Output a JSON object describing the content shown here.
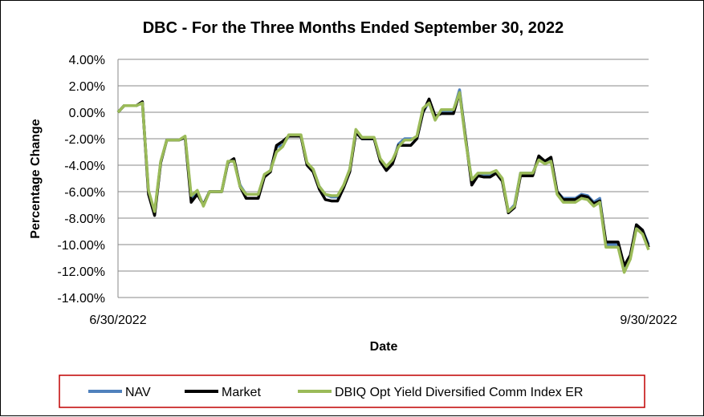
{
  "chart_data": {
    "type": "line",
    "title": "DBC - For the Three Months Ended September 30, 2022",
    "xlabel": "Date",
    "ylabel": "Percentage Change",
    "x_tick_labels": [
      "6/30/2022",
      "9/30/2022"
    ],
    "y_ticks": [
      4,
      2,
      0,
      -2,
      -4,
      -6,
      -8,
      -10,
      -12,
      -14
    ],
    "y_tick_labels": [
      "4.00%",
      "2.00%",
      "0.00%",
      "-2.00%",
      "-4.00%",
      "-6.00%",
      "-8.00%",
      "-10.00%",
      "-12.00%",
      "-14.00%"
    ],
    "ylim": [
      -14,
      4
    ],
    "grid": "horizontal",
    "legend_position": "bottom",
    "series": [
      {
        "name": "NAV",
        "color": "#4F81BD",
        "values": [
          0.0,
          0.5,
          0.5,
          0.5,
          0.7,
          -6.0,
          -7.6,
          -3.8,
          -2.1,
          -2.1,
          -2.1,
          -1.9,
          -6.5,
          -6.0,
          -7.0,
          -6.0,
          -6.0,
          -6.0,
          -3.8,
          -3.6,
          -5.5,
          -6.2,
          -6.2,
          -6.2,
          -4.8,
          -4.4,
          -2.6,
          -2.5,
          -1.8,
          -1.8,
          -1.8,
          -3.9,
          -4.3,
          -5.6,
          -6.2,
          -6.4,
          -6.4,
          -5.6,
          -4.3,
          -1.5,
          -2.0,
          -2.0,
          -2.0,
          -3.6,
          -4.2,
          -3.8,
          -2.4,
          -2.0,
          -2.0,
          -2.0,
          0.0,
          0.8,
          -0.5,
          0.1,
          0.1,
          0.1,
          1.7,
          -2.0,
          -5.2,
          -4.7,
          -4.7,
          -4.7,
          -4.5,
          -5.1,
          -7.5,
          -7.0,
          -4.6,
          -4.6,
          -4.6,
          -3.5,
          -3.8,
          -3.5,
          -6.0,
          -6.5,
          -6.5,
          -6.5,
          -6.2,
          -6.3,
          -6.8,
          -6.5,
          -10.0,
          -10.0,
          -10.0,
          -11.8,
          -10.9,
          -8.5,
          -8.9,
          -10.0
        ]
      },
      {
        "name": "Market",
        "color": "#000000",
        "values": [
          0.0,
          0.5,
          0.5,
          0.5,
          0.8,
          -6.2,
          -7.8,
          -3.8,
          -2.1,
          -2.1,
          -2.1,
          -1.9,
          -6.8,
          -6.2,
          -7.0,
          -6.0,
          -6.0,
          -6.0,
          -3.8,
          -3.5,
          -5.6,
          -6.5,
          -6.5,
          -6.5,
          -4.9,
          -4.5,
          -2.5,
          -2.2,
          -1.8,
          -1.8,
          -1.8,
          -4.0,
          -4.5,
          -5.8,
          -6.6,
          -6.7,
          -6.7,
          -5.7,
          -4.5,
          -1.5,
          -2.0,
          -2.0,
          -2.0,
          -3.7,
          -4.4,
          -3.9,
          -2.5,
          -2.5,
          -2.5,
          -2.0,
          0.0,
          1.0,
          -0.3,
          -0.1,
          -0.1,
          -0.1,
          1.5,
          -2.0,
          -5.5,
          -4.8,
          -4.9,
          -4.9,
          -4.6,
          -5.2,
          -7.6,
          -7.2,
          -4.8,
          -4.8,
          -4.8,
          -3.3,
          -3.7,
          -3.4,
          -6.0,
          -6.6,
          -6.6,
          -6.6,
          -6.3,
          -6.4,
          -6.9,
          -6.7,
          -9.8,
          -9.8,
          -9.8,
          -11.6,
          -10.8,
          -8.5,
          -8.9,
          -10.2
        ]
      },
      {
        "name": "DBIQ Opt Yield Diversified Comm Index ER",
        "color": "#9BBB59",
        "values": [
          0.0,
          0.5,
          0.5,
          0.5,
          0.7,
          -5.9,
          -7.5,
          -3.7,
          -2.1,
          -2.1,
          -2.1,
          -1.8,
          -6.3,
          -5.9,
          -7.1,
          -6.0,
          -6.0,
          -6.0,
          -3.7,
          -3.7,
          -5.6,
          -6.2,
          -6.2,
          -6.2,
          -4.7,
          -4.4,
          -3.0,
          -2.6,
          -1.7,
          -1.7,
          -1.7,
          -3.8,
          -4.3,
          -5.6,
          -6.2,
          -6.3,
          -6.3,
          -5.5,
          -4.3,
          -1.3,
          -1.9,
          -1.9,
          -1.9,
          -3.5,
          -4.1,
          -3.6,
          -2.6,
          -2.1,
          -2.1,
          -1.8,
          0.3,
          0.7,
          -0.6,
          0.2,
          0.2,
          0.2,
          1.5,
          -2.2,
          -5.1,
          -4.6,
          -4.6,
          -4.6,
          -4.4,
          -5.0,
          -7.5,
          -7.1,
          -4.6,
          -4.6,
          -4.6,
          -3.6,
          -3.9,
          -3.7,
          -6.2,
          -6.8,
          -6.8,
          -6.8,
          -6.5,
          -6.6,
          -7.1,
          -6.8,
          -10.2,
          -10.2,
          -10.2,
          -12.1,
          -11.1,
          -8.8,
          -9.2,
          -10.4
        ]
      }
    ]
  }
}
